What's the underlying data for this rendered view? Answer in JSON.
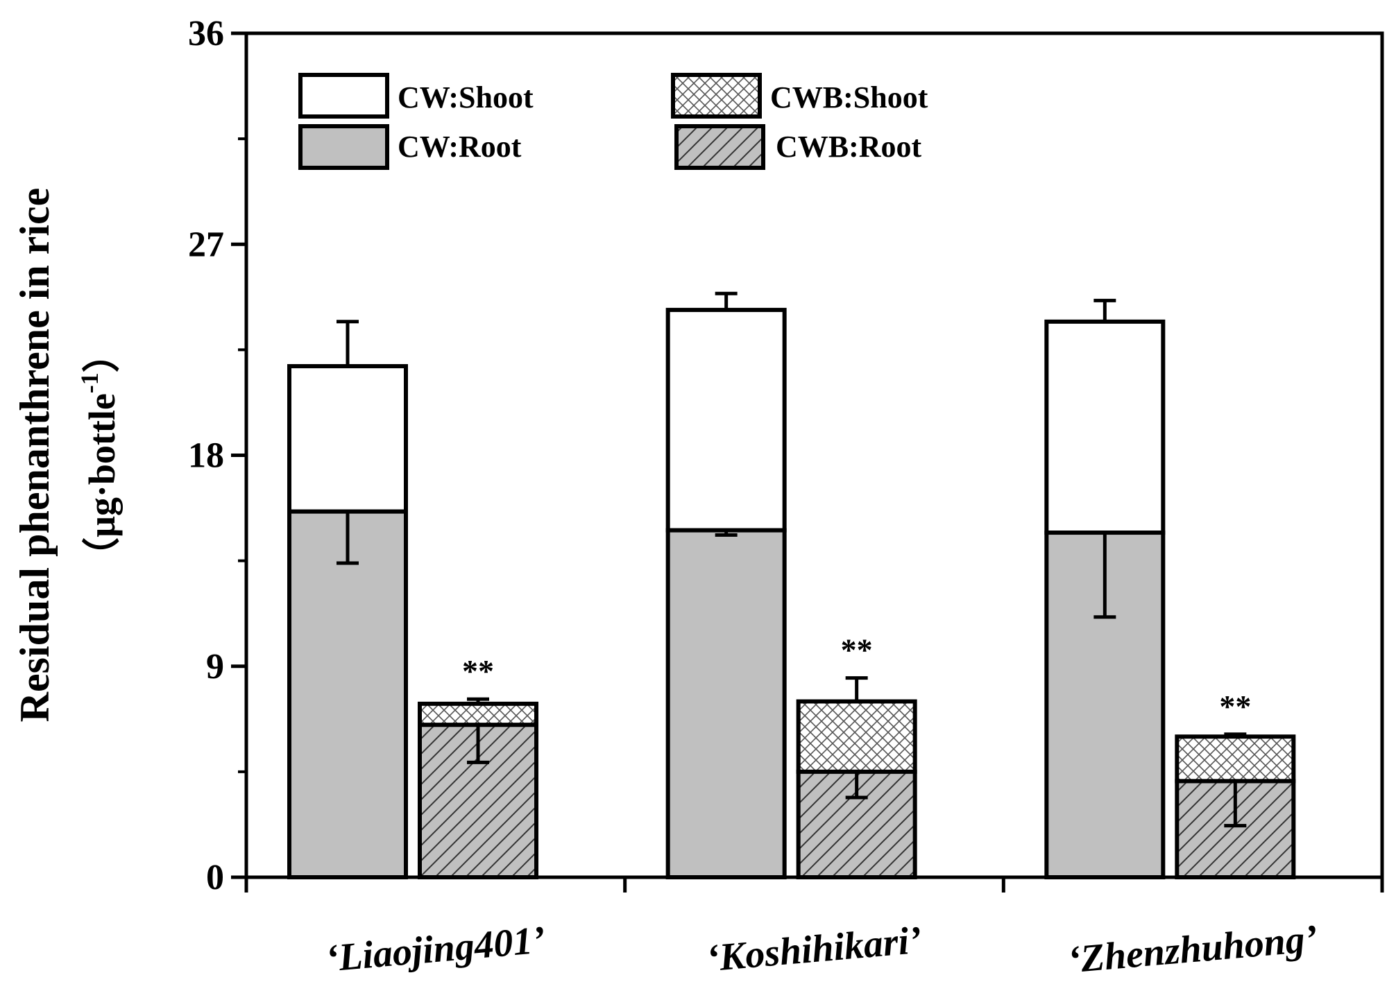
{
  "chart_data": {
    "type": "bar",
    "stacked": true,
    "title": "",
    "ylabel": "Residual phenanthrene in rice",
    "ylabel_units_prefix": "（μg·bottle",
    "ylabel_units_exp": "-1",
    "ylabel_units_suffix": "）",
    "xlabel": "",
    "ylim": [
      0,
      36
    ],
    "yticks": [
      "0",
      "9",
      "18",
      "27",
      "36"
    ],
    "categories": [
      "‘Liaojing401’",
      "‘Koshihikari’",
      "‘Zhenzhuhong’"
    ],
    "groups": [
      "CW",
      "CWB"
    ],
    "series": [
      {
        "name": "CW:Root",
        "group": "CW",
        "values": [
          15.6,
          14.8,
          14.7
        ],
        "err_low": [
          2.2,
          0.2,
          3.6
        ],
        "colors": {
          "fill": "#c0c0c0"
        },
        "pattern": "solid"
      },
      {
        "name": "CW:Shoot",
        "group": "CW",
        "values": [
          6.2,
          9.4,
          9.0
        ],
        "err_high": [
          1.9,
          0.7,
          0.9
        ],
        "colors": {
          "fill": "#ffffff"
        },
        "pattern": "solid"
      },
      {
        "name": "CWB:Root",
        "group": "CWB",
        "values": [
          6.5,
          4.5,
          4.1
        ],
        "err_low": [
          1.6,
          1.1,
          1.9
        ],
        "colors": {
          "fill": "#c0c0c0"
        },
        "pattern": "diagonal-hatch"
      },
      {
        "name": "CWB:Shoot",
        "group": "CWB",
        "values": [
          0.9,
          3.0,
          1.9
        ],
        "err_high": [
          0.2,
          1.0,
          0.1
        ],
        "colors": {
          "fill": "#ffffff"
        },
        "pattern": "crosshatch"
      }
    ],
    "annotations": [
      "**",
      "**",
      "**"
    ],
    "legend": {
      "position": "top-left",
      "items": [
        "CW:Shoot",
        "CW:Root",
        "CWB:Shoot",
        "CWB:Root"
      ]
    }
  }
}
